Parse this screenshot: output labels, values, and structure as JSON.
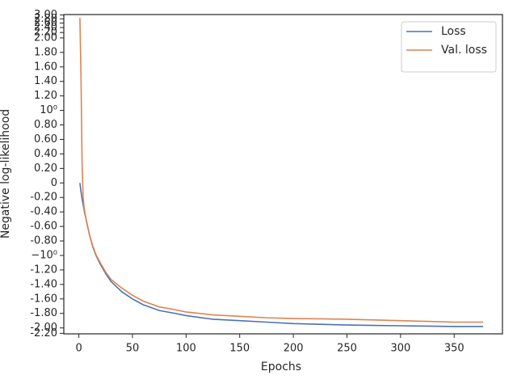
{
  "chart_data": {
    "type": "line",
    "xlabel": "Epochs",
    "ylabel": "Negative log-likelihood",
    "x": [
      1,
      2,
      3,
      4,
      5,
      7,
      10,
      13,
      16,
      20,
      25,
      30,
      40,
      50,
      60,
      75,
      90,
      100,
      125,
      150,
      175,
      200,
      225,
      250,
      275,
      300,
      325,
      350,
      377
    ],
    "series": [
      {
        "name": "Loss",
        "color": "#4c72b0",
        "values": [
          0,
          -0.12,
          -0.22,
          -0.3,
          -0.38,
          -0.52,
          -0.72,
          -0.88,
          -1.0,
          -1.12,
          -1.25,
          -1.36,
          -1.5,
          -1.6,
          -1.68,
          -1.76,
          -1.8,
          -1.83,
          -1.88,
          -1.9,
          -1.92,
          -1.94,
          -1.95,
          -1.96,
          -1.965,
          -1.97,
          -1.975,
          -1.98,
          -1.98
        ]
      },
      {
        "name": "Val. loss",
        "color": "#dd8452",
        "values": [
          2.85,
          1.5,
          0.3,
          -0.2,
          -0.35,
          -0.52,
          -0.72,
          -0.87,
          -0.99,
          -1.1,
          -1.23,
          -1.33,
          -1.45,
          -1.55,
          -1.63,
          -1.71,
          -1.75,
          -1.78,
          -1.82,
          -1.84,
          -1.86,
          -1.87,
          -1.875,
          -1.88,
          -1.89,
          -1.9,
          -1.91,
          -1.92,
          -1.92
        ]
      }
    ],
    "xlim": [
      -14,
      395
    ],
    "xticks": [
      0,
      50,
      100,
      150,
      200,
      250,
      300,
      350
    ],
    "yscale": "symlog",
    "linthresh": 2,
    "linscale": 1,
    "ylim": [
      -2.22,
      3.02
    ],
    "yticks": [
      {
        "value": 3,
        "label": "3.00"
      },
      {
        "value": 2.8,
        "label": "2.80"
      },
      {
        "value": 2.6,
        "label": "2.60"
      },
      {
        "value": 2.4,
        "label": "2.40"
      },
      {
        "value": 2.2,
        "label": "2.20"
      },
      {
        "value": 2,
        "label": "2.00"
      },
      {
        "value": 1.8,
        "label": "1.80"
      },
      {
        "value": 1.6,
        "label": "1.60"
      },
      {
        "value": 1.4,
        "label": "1.40"
      },
      {
        "value": 1.2,
        "label": "1.20"
      },
      {
        "value": 1,
        "label": "10⁰"
      },
      {
        "value": 0.8,
        "label": "0.80"
      },
      {
        "value": 0.6,
        "label": "0.60"
      },
      {
        "value": 0.4,
        "label": "0.40"
      },
      {
        "value": 0.2,
        "label": "0.20"
      },
      0,
      {
        "value": -0.2,
        "label": "-0.20"
      },
      {
        "value": -0.4,
        "label": "-0.40"
      },
      {
        "value": -0.6,
        "label": "-0.60"
      },
      {
        "value": -0.8,
        "label": "-0.80"
      },
      {
        "value": -1,
        "label": "−10⁰"
      },
      {
        "value": -1.2,
        "label": "-1.20"
      },
      {
        "value": -1.4,
        "label": "-1.40"
      },
      {
        "value": -1.6,
        "label": "-1.60"
      },
      {
        "value": -1.8,
        "label": "-1.80"
      },
      {
        "value": -2,
        "label": "-2.00"
      },
      {
        "value": -2.2,
        "label": "-2.20"
      }
    ],
    "grid": false,
    "legend": "upper right"
  }
}
